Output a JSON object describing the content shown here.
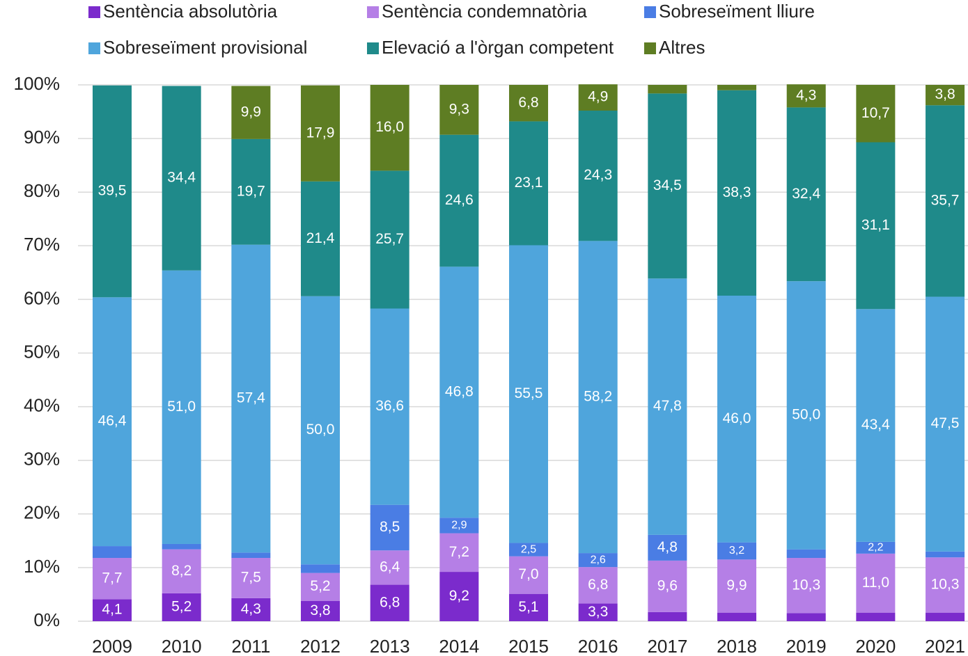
{
  "chart_data": {
    "type": "stacked_bar",
    "categories": [
      "2009",
      "2010",
      "2011",
      "2012",
      "2013",
      "2014",
      "2015",
      "2016",
      "2017",
      "2018",
      "2019",
      "2020",
      "2021"
    ],
    "series": [
      {
        "name": "Sentència absolutòria",
        "color": "#7b2bcc",
        "values": [
          4.1,
          5.2,
          4.3,
          3.8,
          6.8,
          9.2,
          5.1,
          3.3,
          1.7,
          1.6,
          1.5,
          1.6,
          1.6
        ],
        "value_labels": [
          "4,1",
          "5,2",
          "4,3",
          "3,8",
          "6,8",
          "9,2",
          "5,1",
          "3,3",
          null,
          null,
          null,
          null,
          null
        ]
      },
      {
        "name": "Sentència condemnatòria",
        "color": "#b57fe6",
        "values": [
          7.7,
          8.2,
          7.5,
          5.2,
          6.4,
          7.2,
          7.0,
          6.8,
          9.6,
          9.9,
          10.3,
          11.0,
          10.3
        ],
        "value_labels": [
          "7,7",
          "8,2",
          "7,5",
          "5,2",
          "6,4",
          "7,2",
          "7,0",
          "6,8",
          "9,6",
          "9,9",
          "10,3",
          "11,0",
          "10,3"
        ]
      },
      {
        "name": "Sobreseïment lliure",
        "color": "#4a7de4",
        "values": [
          2.2,
          1.0,
          1.0,
          1.6,
          8.5,
          2.9,
          2.5,
          2.6,
          4.8,
          3.2,
          1.6,
          2.2,
          1.1
        ],
        "value_labels": [
          null,
          null,
          null,
          null,
          "8,5",
          "2,9",
          "2,5",
          "2,6",
          "4,8",
          "3,2",
          null,
          "2,2",
          null
        ]
      },
      {
        "name": "Sobreseïment provisional",
        "color": "#4fa5dc",
        "values": [
          46.4,
          51.0,
          57.4,
          50.0,
          36.6,
          46.8,
          55.5,
          58.2,
          47.8,
          46.0,
          50.0,
          43.4,
          47.5
        ],
        "value_labels": [
          "46,4",
          "51,0",
          "57,4",
          "50,0",
          "36,6",
          "46,8",
          "55,5",
          "58,2",
          "47,8",
          "46,0",
          "50,0",
          "43,4",
          "47,5"
        ]
      },
      {
        "name": "Elevació a l'òrgan competent",
        "color": "#1f8a8a",
        "values": [
          39.5,
          34.4,
          19.7,
          21.4,
          25.7,
          24.6,
          23.1,
          24.3,
          34.5,
          38.3,
          32.4,
          31.1,
          35.7
        ],
        "value_labels": [
          "39,5",
          "34,4",
          "19,7",
          "21,4",
          "25,7",
          "24,6",
          "23,1",
          "24,3",
          "34,5",
          "38,3",
          "32,4",
          "31,1",
          "35,7"
        ]
      },
      {
        "name": "Altres",
        "color": "#5e7d23",
        "values": [
          0,
          0,
          9.9,
          17.9,
          16.0,
          9.3,
          6.8,
          4.9,
          1.6,
          1.0,
          4.3,
          10.7,
          3.8
        ],
        "value_labels": [
          null,
          null,
          "9,9",
          "17,9",
          "16,0",
          "9,3",
          "6,8",
          "4,9",
          null,
          null,
          "4,3",
          "10,7",
          "3,8"
        ]
      }
    ],
    "ylim": [
      0,
      100
    ],
    "yticks": [
      {
        "value": 0,
        "label": "0%"
      },
      {
        "value": 10,
        "label": "10%"
      },
      {
        "value": 20,
        "label": "20%"
      },
      {
        "value": 30,
        "label": "30%"
      },
      {
        "value": 40,
        "label": "40%"
      },
      {
        "value": 50,
        "label": "50%"
      },
      {
        "value": 60,
        "label": "60%"
      },
      {
        "value": 70,
        "label": "70%"
      },
      {
        "value": 80,
        "label": "80%"
      },
      {
        "value": 90,
        "label": "90%"
      },
      {
        "value": 100,
        "label": "100%"
      }
    ],
    "grid": true,
    "legend": "top"
  }
}
